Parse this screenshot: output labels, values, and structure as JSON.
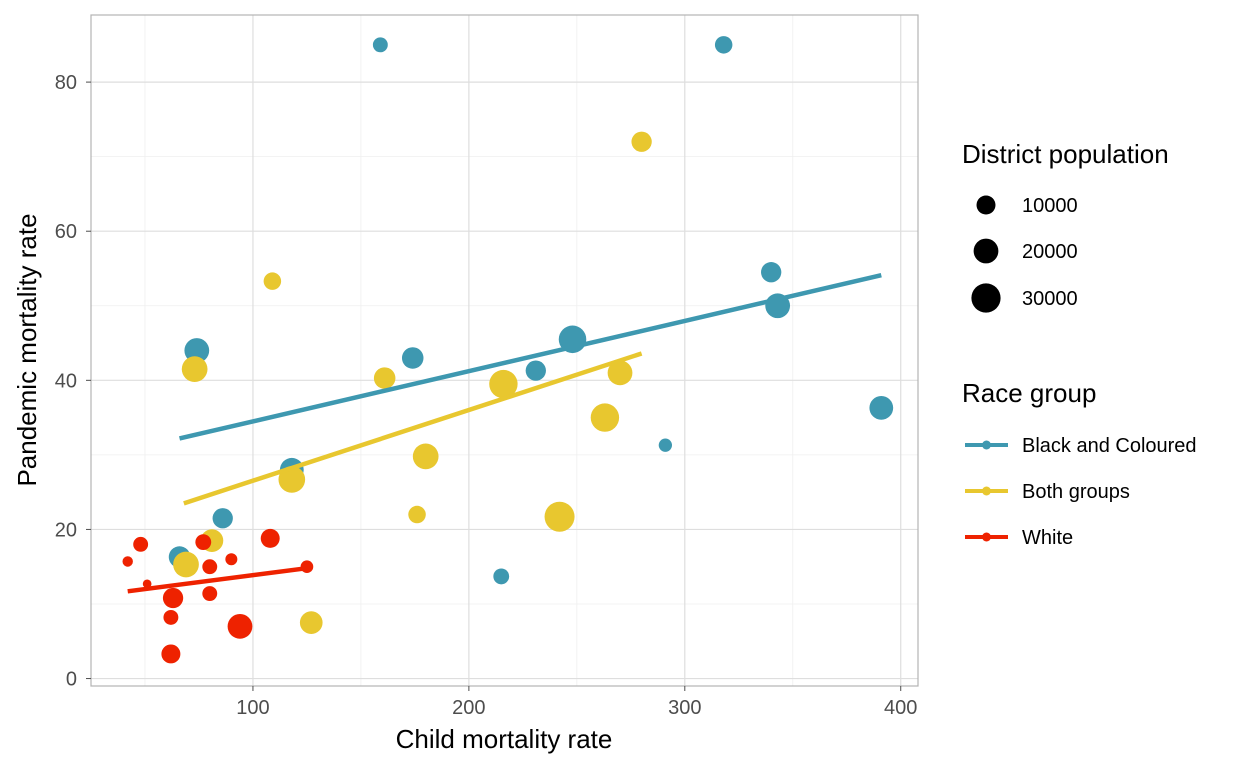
{
  "chart_data": {
    "type": "scatter",
    "xlabel": "Child mortality rate",
    "ylabel": "Pandemic mortality rate",
    "xlim": [
      25,
      408
    ],
    "ylim": [
      -1,
      89
    ],
    "x_ticks": [
      100,
      200,
      300,
      400
    ],
    "y_ticks": [
      0,
      20,
      40,
      60,
      80
    ],
    "grid": true,
    "legends": {
      "size": {
        "title": "District population",
        "entries": [
          {
            "label": "10000",
            "value": 10000
          },
          {
            "label": "20000",
            "value": 20000
          },
          {
            "label": "30000",
            "value": 30000
          }
        ]
      },
      "color": {
        "title": "Race group",
        "entries": [
          {
            "label": "Black and Coloured",
            "color": "#3E98B0"
          },
          {
            "label": "Both groups",
            "color": "#E8C72F"
          },
          {
            "label": "White",
            "color": "#EE2200"
          }
        ]
      },
      "placement": "right"
    },
    "series": [
      {
        "name": "Black and Coloured",
        "color": "#3E98B0",
        "points": [
          {
            "x": 159,
            "y": 85,
            "size": 5000
          },
          {
            "x": 318,
            "y": 85,
            "size": 8000
          },
          {
            "x": 74,
            "y": 44,
            "size": 20000
          },
          {
            "x": 174,
            "y": 43,
            "size": 14000
          },
          {
            "x": 231,
            "y": 41.3,
            "size": 12000
          },
          {
            "x": 248,
            "y": 45.5,
            "size": 26000
          },
          {
            "x": 340,
            "y": 54.5,
            "size": 12000
          },
          {
            "x": 343,
            "y": 50,
            "size": 20000
          },
          {
            "x": 391,
            "y": 36.3,
            "size": 18000
          },
          {
            "x": 118,
            "y": 28,
            "size": 18000
          },
          {
            "x": 86,
            "y": 21.5,
            "size": 12000
          },
          {
            "x": 66,
            "y": 16.3,
            "size": 14000
          },
          {
            "x": 291,
            "y": 31.3,
            "size": 3500
          },
          {
            "x": 215,
            "y": 13.7,
            "size": 6000
          }
        ],
        "trend": {
          "x": [
            66,
            391
          ],
          "y": [
            32.2,
            54.1
          ]
        }
      },
      {
        "name": "Both groups",
        "color": "#E8C72F",
        "points": [
          {
            "x": 280,
            "y": 72,
            "size": 12000
          },
          {
            "x": 109,
            "y": 53.3,
            "size": 8000
          },
          {
            "x": 73,
            "y": 41.5,
            "size": 22000
          },
          {
            "x": 161,
            "y": 40.3,
            "size": 14000
          },
          {
            "x": 216,
            "y": 39.5,
            "size": 28000
          },
          {
            "x": 270,
            "y": 41,
            "size": 20000
          },
          {
            "x": 263,
            "y": 35,
            "size": 28000
          },
          {
            "x": 180,
            "y": 29.8,
            "size": 22000
          },
          {
            "x": 118,
            "y": 26.7,
            "size": 24000
          },
          {
            "x": 81,
            "y": 18.5,
            "size": 16000
          },
          {
            "x": 69,
            "y": 15.3,
            "size": 22000
          },
          {
            "x": 176,
            "y": 22,
            "size": 8000
          },
          {
            "x": 242,
            "y": 21.7,
            "size": 32000
          },
          {
            "x": 127,
            "y": 7.5,
            "size": 16000
          }
        ],
        "trend": {
          "x": [
            68,
            280
          ],
          "y": [
            23.5,
            43.6
          ]
        }
      },
      {
        "name": "White",
        "color": "#EE2200",
        "points": [
          {
            "x": 42,
            "y": 15.7,
            "size": 1500
          },
          {
            "x": 48,
            "y": 18,
            "size": 5000
          },
          {
            "x": 51,
            "y": 12.7,
            "size": 700
          },
          {
            "x": 63,
            "y": 10.8,
            "size": 12000
          },
          {
            "x": 62,
            "y": 8.2,
            "size": 5000
          },
          {
            "x": 62,
            "y": 3.3,
            "size": 10000
          },
          {
            "x": 77,
            "y": 18.3,
            "size": 6000
          },
          {
            "x": 80,
            "y": 15,
            "size": 5000
          },
          {
            "x": 80,
            "y": 11.4,
            "size": 5000
          },
          {
            "x": 90,
            "y": 16,
            "size": 2500
          },
          {
            "x": 94,
            "y": 7,
            "size": 20000
          },
          {
            "x": 108,
            "y": 18.8,
            "size": 10000
          },
          {
            "x": 125,
            "y": 15,
            "size": 3000
          }
        ],
        "trend": {
          "x": [
            42,
            125
          ],
          "y": [
            11.7,
            14.8
          ]
        }
      }
    ]
  }
}
